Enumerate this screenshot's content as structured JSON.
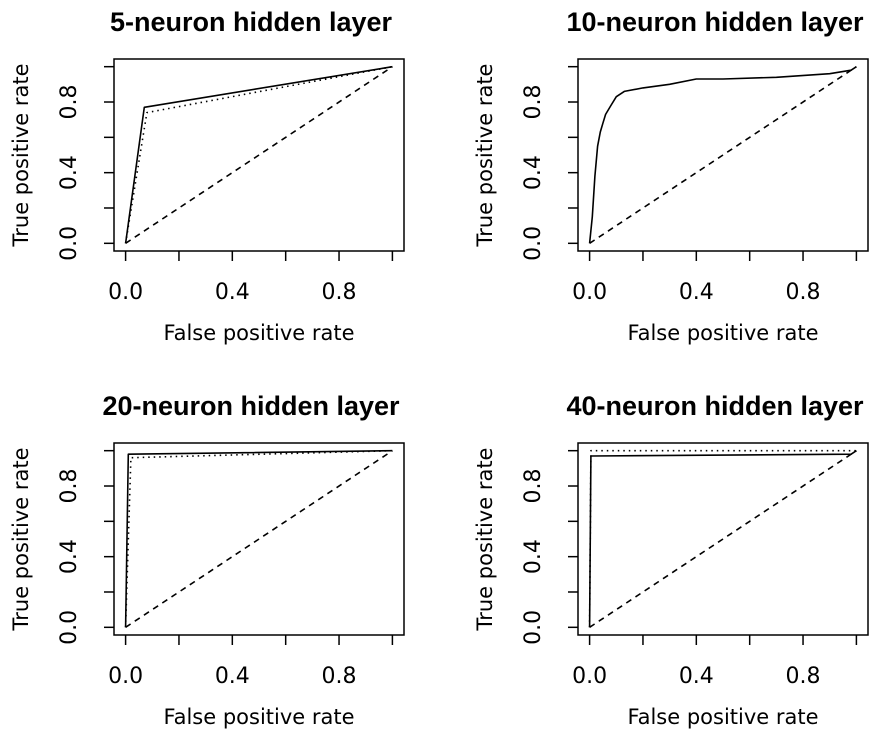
{
  "chart_data": [
    {
      "type": "line",
      "title": "5-neuron hidden layer",
      "xlabel": "False positive rate",
      "ylabel": "True positive rate",
      "xlim": [
        0,
        1
      ],
      "ylim": [
        0,
        1
      ],
      "x_ticks": [
        "0.0",
        "0.4",
        "0.8"
      ],
      "y_ticks": [
        "0.0",
        "0.4",
        "0.8"
      ],
      "grid": false,
      "series": [
        {
          "style": "solid",
          "points": [
            [
              0,
              0
            ],
            [
              0.07,
              0.77
            ],
            [
              1,
              1
            ]
          ]
        },
        {
          "style": "dotted",
          "points": [
            [
              0,
              0
            ],
            [
              0.08,
              0.74
            ],
            [
              1,
              1
            ]
          ]
        },
        {
          "style": "dashed",
          "points": [
            [
              0,
              0
            ],
            [
              1,
              1
            ]
          ]
        }
      ]
    },
    {
      "type": "line",
      "title": "10-neuron hidden layer",
      "xlabel": "False positive rate",
      "ylabel": "True positive rate",
      "xlim": [
        0,
        1
      ],
      "ylim": [
        0,
        1
      ],
      "x_ticks": [
        "0.0",
        "0.4",
        "0.8"
      ],
      "y_ticks": [
        "0.0",
        "0.4",
        "0.8"
      ],
      "grid": false,
      "series": [
        {
          "style": "solid",
          "points": [
            [
              0,
              0
            ],
            [
              0.01,
              0.15
            ],
            [
              0.02,
              0.38
            ],
            [
              0.03,
              0.55
            ],
            [
              0.04,
              0.63
            ],
            [
              0.05,
              0.68
            ],
            [
              0.06,
              0.73
            ],
            [
              0.08,
              0.78
            ],
            [
              0.1,
              0.83
            ],
            [
              0.13,
              0.86
            ],
            [
              0.2,
              0.88
            ],
            [
              0.3,
              0.9
            ],
            [
              0.4,
              0.93
            ],
            [
              0.5,
              0.93
            ],
            [
              0.7,
              0.94
            ],
            [
              0.9,
              0.96
            ],
            [
              0.98,
              0.98
            ],
            [
              1,
              1
            ]
          ]
        },
        {
          "style": "dashed",
          "points": [
            [
              0,
              0
            ],
            [
              1,
              1
            ]
          ]
        }
      ]
    },
    {
      "type": "line",
      "title": "20-neuron hidden layer",
      "xlabel": "False positive rate",
      "ylabel": "True positive rate",
      "xlim": [
        0,
        1
      ],
      "ylim": [
        0,
        1
      ],
      "x_ticks": [
        "0.0",
        "0.4",
        "0.8"
      ],
      "y_ticks": [
        "0.0",
        "0.4",
        "0.8"
      ],
      "grid": false,
      "series": [
        {
          "style": "solid",
          "points": [
            [
              0,
              0
            ],
            [
              0.01,
              0.98
            ],
            [
              1,
              1
            ]
          ]
        },
        {
          "style": "dotted",
          "points": [
            [
              0,
              0
            ],
            [
              0.02,
              0.96
            ],
            [
              1,
              1
            ]
          ]
        },
        {
          "style": "dashed",
          "points": [
            [
              0,
              0
            ],
            [
              1,
              1
            ]
          ]
        }
      ]
    },
    {
      "type": "line",
      "title": "40-neuron hidden layer",
      "xlabel": "False positive rate",
      "ylabel": "True positive rate",
      "xlim": [
        0,
        1
      ],
      "ylim": [
        0,
        1
      ],
      "x_ticks": [
        "0.0",
        "0.4",
        "0.8"
      ],
      "y_ticks": [
        "0.0",
        "0.4",
        "0.8"
      ],
      "grid": false,
      "series": [
        {
          "style": "solid",
          "points": [
            [
              0,
              0
            ],
            [
              0.005,
              0.97
            ],
            [
              0.98,
              0.98
            ],
            [
              1,
              1
            ]
          ]
        },
        {
          "style": "dotted",
          "points": [
            [
              0,
              0
            ],
            [
              0.005,
              1.0
            ],
            [
              1,
              1
            ]
          ]
        },
        {
          "style": "dashed",
          "points": [
            [
              0,
              0
            ],
            [
              1,
              1
            ]
          ]
        }
      ]
    }
  ]
}
